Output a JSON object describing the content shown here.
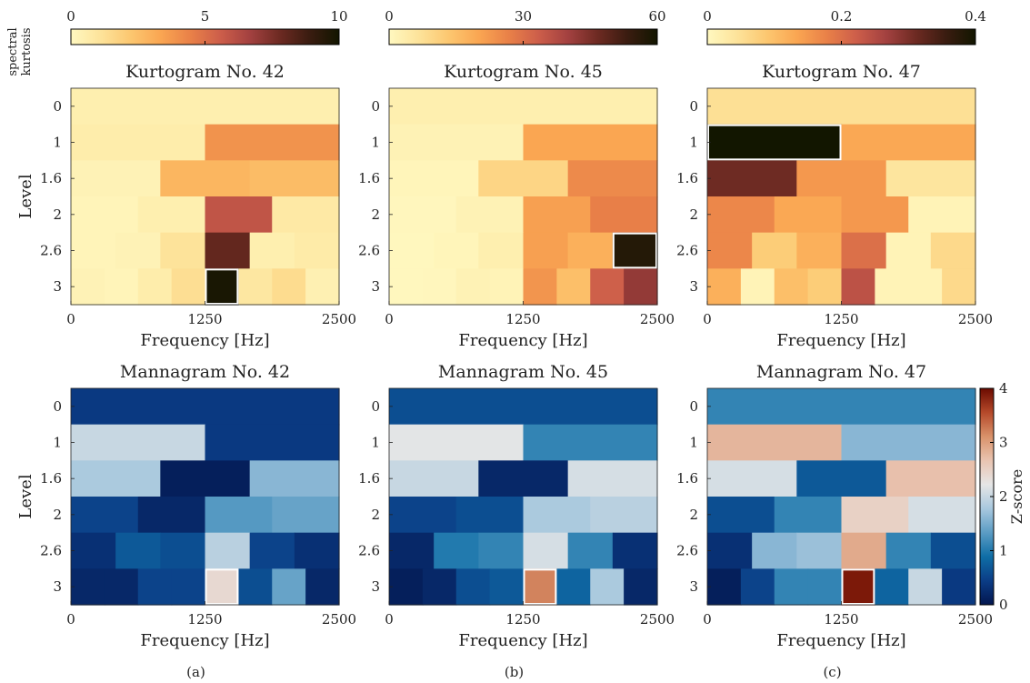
{
  "figure": {
    "colorbar_kurtosis_label": "spectral kurtosis",
    "colorbar_kurtosis_label_lines": [
      "spectral",
      "kurtosis"
    ],
    "colorbar_zscore_label": "Z-score",
    "ylabel": "Level",
    "xlabel": "Frequency [Hz]",
    "x_ticks": [
      "0",
      "1250",
      "2500"
    ],
    "level_ticks": [
      "0",
      "1",
      "1.6",
      "2",
      "2.6",
      "3"
    ],
    "zscore_ticks": [
      "0",
      "1",
      "2",
      "3",
      "4"
    ],
    "subfigure_labels": [
      "(a)",
      "(b)",
      "(c)"
    ]
  },
  "colors": {
    "kurtosis_map": [
      "#fff8c0",
      "#fde39a",
      "#fcc770",
      "#faa652",
      "#e98148",
      "#cd5e4a",
      "#a34140",
      "#6d2a22",
      "#3a1c10",
      "#121600"
    ],
    "zscore_map": [
      "#03164f",
      "#0b3d86",
      "#0f6ea6",
      "#5b9cc4",
      "#a8c8de",
      "#e6e6e6",
      "#e9c4b1",
      "#d9926a",
      "#b5492a",
      "#6b0b00"
    ],
    "highlight": "#ffffff"
  },
  "chart_data": [
    {
      "type": "heatmap",
      "title": "Kurtogram No. 42",
      "colorbar_ticks": [
        "0",
        "5",
        "10"
      ],
      "colorbar_range": [
        0,
        10
      ],
      "xlabel": "Frequency [Hz]",
      "ylabel": "Level",
      "xlim": [
        0,
        2500
      ],
      "levels": [
        "0",
        "1",
        "1.6",
        "2",
        "2.6",
        "3"
      ],
      "rows": [
        [
          0.5
        ],
        [
          0.6,
          3.9
        ],
        [
          0.3,
          2.8,
          2.6
        ],
        [
          0.2,
          0.5,
          5.9,
          0.8
        ],
        [
          0.2,
          0.3,
          1.1,
          8.0,
          0.5,
          0.7
        ],
        [
          0.3,
          0.2,
          0.6,
          1.3,
          9.8,
          0.9,
          1.4,
          0.4
        ]
      ],
      "highlight": {
        "level": "3",
        "band": 4
      }
    },
    {
      "type": "heatmap",
      "title": "Kurtogram No. 45",
      "colorbar_ticks": [
        "0",
        "30",
        "60"
      ],
      "colorbar_range": [
        0,
        60
      ],
      "xlabel": "Frequency [Hz]",
      "ylabel": "Level",
      "xlim": [
        0,
        2500
      ],
      "levels": [
        "0",
        "1",
        "1.6",
        "2",
        "2.6",
        "3"
      ],
      "rows": [
        [
          3
        ],
        [
          2,
          20
        ],
        [
          1,
          10,
          25
        ],
        [
          0.5,
          2,
          21,
          27
        ],
        [
          0.3,
          1,
          3,
          21,
          18,
          57
        ],
        [
          0.3,
          0.6,
          2,
          1.5,
          23,
          15,
          33,
          42
        ]
      ],
      "highlight": {
        "level": "2.6",
        "band": 5
      }
    },
    {
      "type": "heatmap",
      "title": "Kurtogram No. 47",
      "colorbar_ticks": [
        "0",
        "0.2",
        "0.4"
      ],
      "colorbar_range": [
        0,
        0.4
      ],
      "xlabel": "Frequency [Hz]",
      "ylabel": "Level",
      "xlim": [
        0,
        2500
      ],
      "levels": [
        "0",
        "1",
        "1.6",
        "2",
        "2.6",
        "3"
      ],
      "rows": [
        [
          0.05
        ],
        [
          0.4,
          0.13
        ],
        [
          0.31,
          0.15,
          0.04
        ],
        [
          0.17,
          0.13,
          0.15,
          0.01
        ],
        [
          0.17,
          0.08,
          0.12,
          0.2,
          0.01,
          0.06
        ],
        [
          0.12,
          0.01,
          0.1,
          0.08,
          0.24,
          0.01,
          0.01,
          0.06
        ]
      ],
      "highlight": {
        "level": "1",
        "band": 0
      }
    },
    {
      "type": "heatmap",
      "title": "Mannagram No. 42",
      "colorbar_range": [
        0,
        4
      ],
      "xlabel": "Frequency [Hz]",
      "ylabel": "Level",
      "xlim": [
        0,
        2500
      ],
      "levels": [
        "0",
        "1",
        "1.6",
        "2",
        "2.6",
        "3"
      ],
      "rows": [
        [
          0.4
        ],
        [
          2.0,
          0.4
        ],
        [
          1.8,
          0.1,
          1.6
        ],
        [
          0.5,
          0.2,
          1.3,
          1.4
        ],
        [
          0.3,
          0.7,
          0.6,
          1.9,
          0.5,
          0.3
        ],
        [
          0.2,
          0.2,
          0.5,
          0.5,
          2.4,
          0.6,
          1.4,
          0.2
        ]
      ],
      "highlight": {
        "level": "3",
        "band": 4
      }
    },
    {
      "type": "heatmap",
      "title": "Mannagram No. 45",
      "colorbar_range": [
        0,
        4
      ],
      "xlabel": "Frequency [Hz]",
      "ylabel": "Level",
      "xlim": [
        0,
        2500
      ],
      "levels": [
        "0",
        "1",
        "1.6",
        "2",
        "2.6",
        "3"
      ],
      "rows": [
        [
          0.6
        ],
        [
          2.2,
          1.1
        ],
        [
          2.0,
          0.2,
          2.1
        ],
        [
          0.5,
          0.6,
          1.8,
          1.9
        ],
        [
          0.2,
          1.0,
          1.1,
          2.1,
          1.1,
          0.3
        ],
        [
          0.1,
          0.2,
          0.6,
          0.7,
          3.2,
          0.8,
          1.8,
          0.2
        ]
      ],
      "highlight": {
        "level": "3",
        "band": 4
      }
    },
    {
      "type": "heatmap",
      "title": "Mannagram No. 47",
      "colorbar_range": [
        0,
        4
      ],
      "colorbar_ticks": [
        "0",
        "1",
        "2",
        "3",
        "4"
      ],
      "colorbar_label": "Z-score",
      "xlabel": "Frequency [Hz]",
      "ylabel": "Level",
      "xlim": [
        0,
        2500
      ],
      "levels": [
        "0",
        "1",
        "1.6",
        "2",
        "2.6",
        "3"
      ],
      "rows": [
        [
          1.1
        ],
        [
          2.8,
          1.6
        ],
        [
          2.1,
          0.7,
          2.7
        ],
        [
          0.6,
          1.1,
          2.5,
          2.1
        ],
        [
          0.3,
          1.6,
          1.7,
          2.9,
          1.1,
          0.6
        ],
        [
          0.1,
          0.5,
          1.1,
          1.1,
          3.9,
          0.8,
          2.0,
          0.4
        ]
      ],
      "highlight": {
        "level": "3",
        "band": 4
      }
    }
  ]
}
